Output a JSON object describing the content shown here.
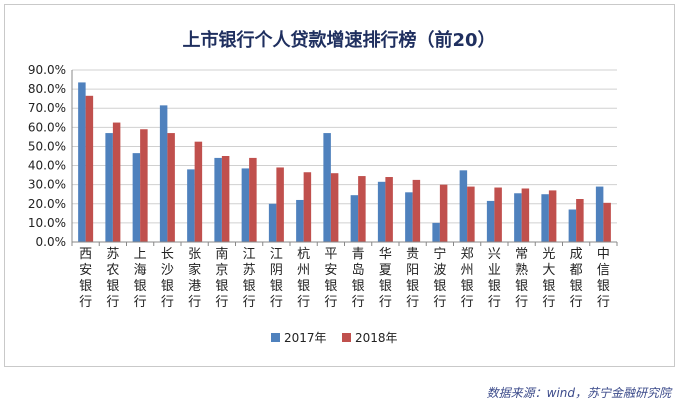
{
  "chart_data": {
    "type": "bar",
    "title": "上市银行个人贷款增速排行榜（前20）",
    "xlabel": "",
    "ylabel": "",
    "ylim": [
      0,
      0.9
    ],
    "yticks": [
      "0.0%",
      "10.0%",
      "20.0%",
      "30.0%",
      "40.0%",
      "50.0%",
      "60.0%",
      "70.0%",
      "80.0%",
      "90.0%"
    ],
    "grid": true,
    "legend_position": "bottom",
    "categories": [
      "西安银行",
      "苏农银行",
      "上海银行",
      "长沙银行",
      "张家港行",
      "南京银行",
      "江苏银行",
      "江阴银行",
      "杭州银行",
      "平安银行",
      "青岛银行",
      "华夏银行",
      "贵阳银行",
      "宁波银行",
      "郑州银行",
      "兴业银行",
      "常熟银行",
      "光大银行",
      "成都银行",
      "中信银行"
    ],
    "series": [
      {
        "name": "2017年",
        "color": "#4f81bd",
        "values": [
          0.835,
          0.57,
          0.465,
          0.715,
          0.38,
          0.44,
          0.385,
          0.2,
          0.22,
          0.57,
          0.245,
          0.315,
          0.26,
          0.1,
          0.375,
          0.215,
          0.255,
          0.25,
          0.17,
          0.29
        ]
      },
      {
        "name": "2018年",
        "color": "#c0504d",
        "values": [
          0.765,
          0.625,
          0.59,
          0.57,
          0.525,
          0.45,
          0.44,
          0.39,
          0.365,
          0.36,
          0.345,
          0.34,
          0.325,
          0.3,
          0.29,
          0.285,
          0.28,
          0.27,
          0.225,
          0.205
        ]
      }
    ]
  },
  "source": "数据来源：wind，苏宁金融研究院"
}
